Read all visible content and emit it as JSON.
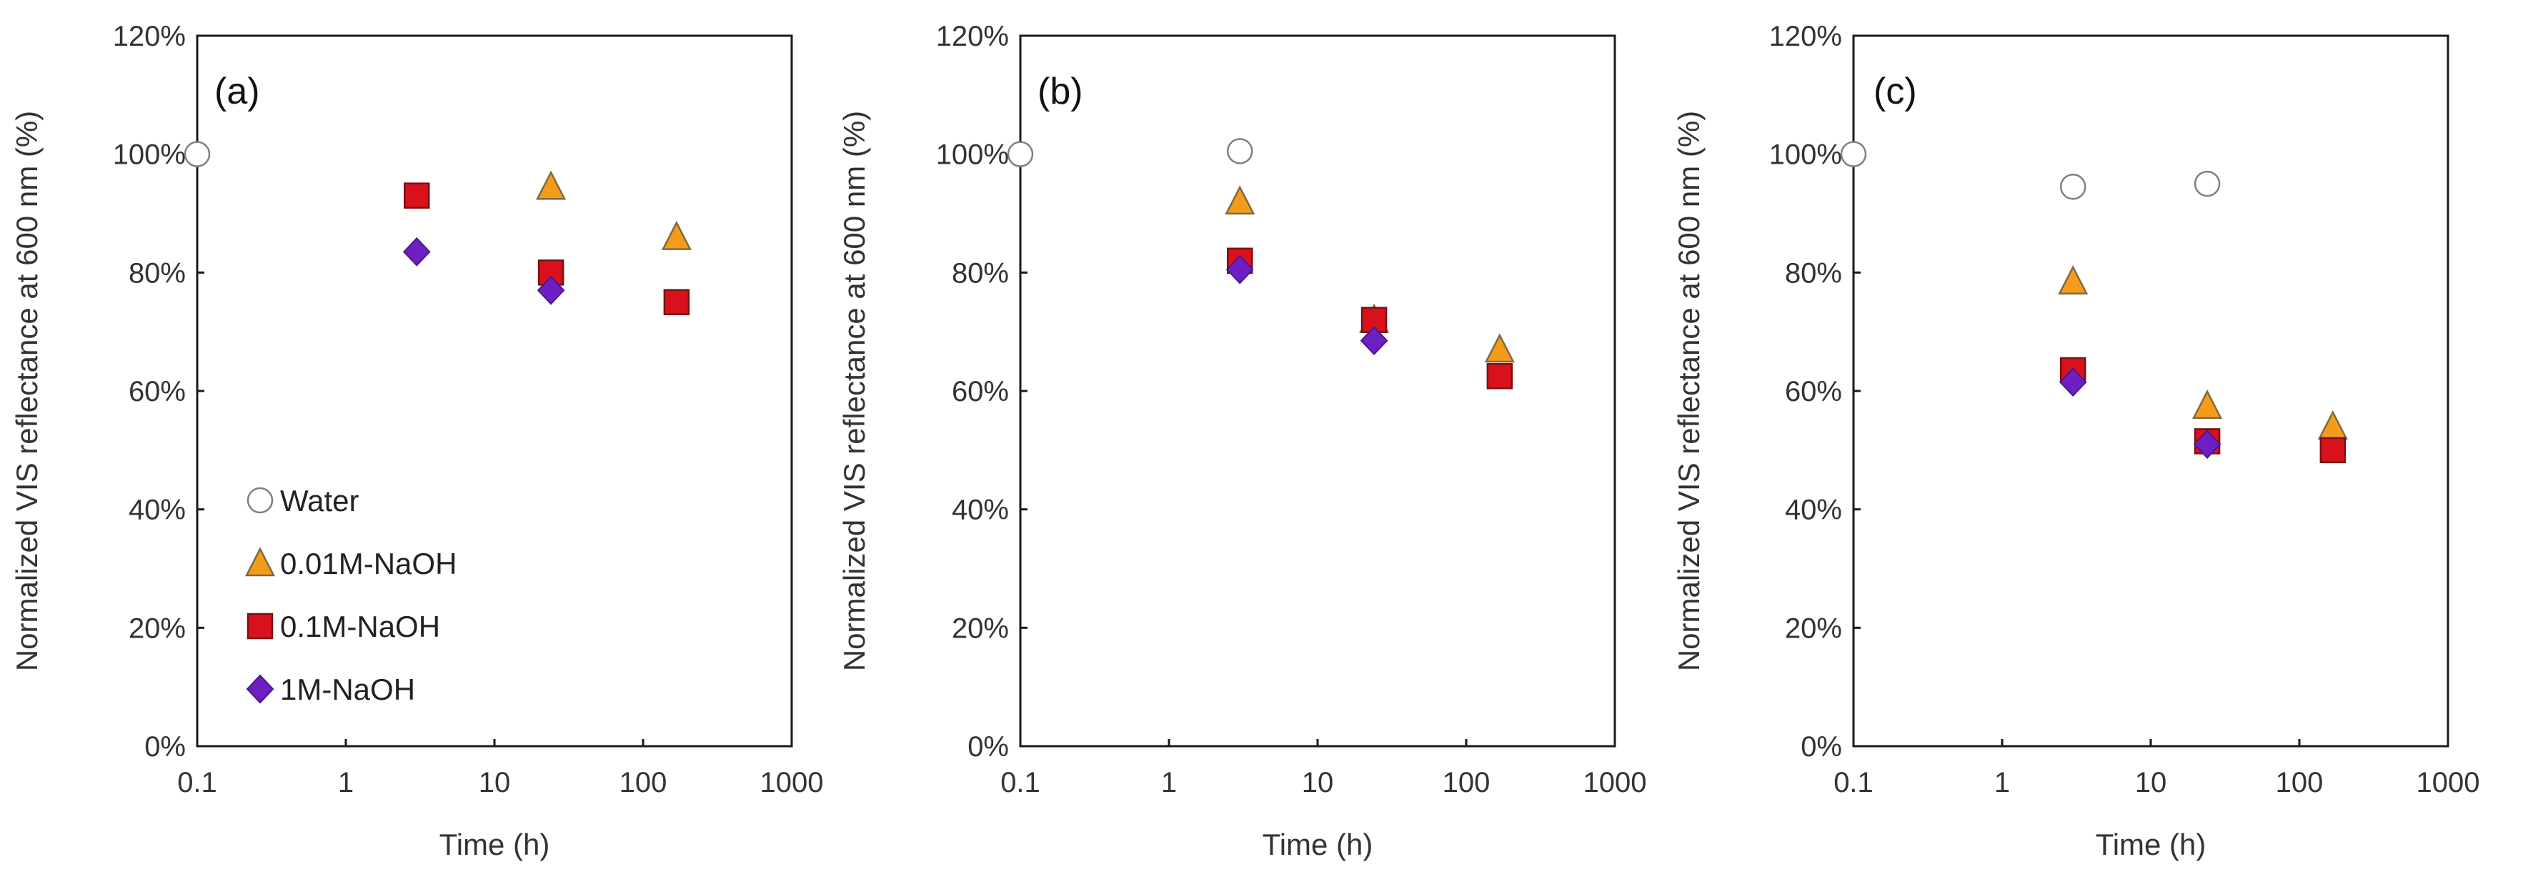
{
  "chart_data": [
    {
      "type": "scatter",
      "panel_label": "(a)",
      "xlabel": "Time (h)",
      "ylabel": "Normalized VIS reflectance at 600 nm (%)",
      "xscale": "log",
      "xlim": [
        0.1,
        1000
      ],
      "ylim": [
        0,
        120
      ],
      "x_ticks": [
        "0.1",
        "1",
        "10",
        "100",
        "1000"
      ],
      "y_ticks": [
        "0%",
        "20%",
        "40%",
        "60%",
        "80%",
        "100%",
        "120%"
      ],
      "legend": {
        "position": "lower-left",
        "entries": [
          "Water",
          "0.01M-NaOH",
          "0.1M-NaOH",
          "1M-NaOH"
        ]
      },
      "series": [
        {
          "name": "Water",
          "marker": "circle",
          "points": [
            [
              0.1,
              100
            ]
          ]
        },
        {
          "name": "0.01M-NaOH",
          "marker": "triangle",
          "points": [
            [
              24,
              94.5
            ],
            [
              168,
              86
            ]
          ]
        },
        {
          "name": "0.1M-NaOH",
          "marker": "square",
          "points": [
            [
              3,
              93
            ],
            [
              24,
              80
            ],
            [
              168,
              75
            ]
          ]
        },
        {
          "name": "1M-NaOH",
          "marker": "diamond",
          "points": [
            [
              3,
              83.5
            ],
            [
              24,
              77
            ]
          ]
        }
      ]
    },
    {
      "type": "scatter",
      "panel_label": "(b)",
      "xlabel": "Time (h)",
      "ylabel": "Normalized VIS reflectance at 600 nm (%)",
      "xscale": "log",
      "xlim": [
        0.1,
        1000
      ],
      "ylim": [
        0,
        120
      ],
      "x_ticks": [
        "0.1",
        "1",
        "10",
        "100",
        "1000"
      ],
      "y_ticks": [
        "0%",
        "20%",
        "40%",
        "60%",
        "80%",
        "100%",
        "120%"
      ],
      "series": [
        {
          "name": "Water",
          "marker": "circle",
          "points": [
            [
              0.1,
              100
            ],
            [
              3,
              100.5
            ]
          ]
        },
        {
          "name": "0.01M-NaOH",
          "marker": "triangle",
          "points": [
            [
              3,
              92
            ],
            [
              24,
              72
            ],
            [
              168,
              67
            ]
          ]
        },
        {
          "name": "0.1M-NaOH",
          "marker": "square",
          "points": [
            [
              3,
              82
            ],
            [
              24,
              72
            ],
            [
              168,
              62.5
            ]
          ]
        },
        {
          "name": "1M-NaOH",
          "marker": "diamond",
          "points": [
            [
              3,
              80.5
            ],
            [
              24,
              68.5
            ]
          ]
        }
      ]
    },
    {
      "type": "scatter",
      "panel_label": "(c)",
      "xlabel": "Time (h)",
      "ylabel": "Normalized VIS reflectance at 600 nm (%)",
      "xscale": "log",
      "xlim": [
        0.1,
        1000
      ],
      "ylim": [
        0,
        120
      ],
      "x_ticks": [
        "0.1",
        "1",
        "10",
        "100",
        "1000"
      ],
      "y_ticks": [
        "0%",
        "20%",
        "40%",
        "60%",
        "80%",
        "100%",
        "120%"
      ],
      "series": [
        {
          "name": "Water",
          "marker": "circle",
          "points": [
            [
              0.1,
              100
            ],
            [
              3,
              94.5
            ],
            [
              24,
              95
            ]
          ]
        },
        {
          "name": "0.01M-NaOH",
          "marker": "triangle",
          "points": [
            [
              3,
              78.5
            ],
            [
              24,
              57.5
            ],
            [
              168,
              54
            ]
          ]
        },
        {
          "name": "0.1M-NaOH",
          "marker": "square",
          "points": [
            [
              3,
              63.5
            ],
            [
              24,
              51.5
            ],
            [
              168,
              50
            ]
          ]
        },
        {
          "name": "1M-NaOH",
          "marker": "diamond",
          "points": [
            [
              3,
              61.5
            ],
            [
              24,
              51
            ]
          ]
        }
      ]
    }
  ],
  "styles": {
    "Water": {
      "fill": "#ffffff",
      "stroke": "#7f7f7f"
    },
    "0.01M-NaOH": {
      "fill": "#f59b1c",
      "stroke": "#7f6a3f"
    },
    "0.1M-NaOH": {
      "fill": "#d9111c",
      "stroke": "#7a1010"
    },
    "1M-NaOH": {
      "fill": "#6d1fc2",
      "stroke": "#4a1590"
    }
  }
}
